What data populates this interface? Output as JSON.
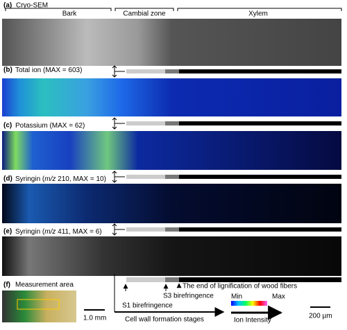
{
  "regions": {
    "bark": "Bark",
    "cambial": "Cambial zone",
    "xylem": "Xylem"
  },
  "panels": [
    {
      "letter": "(a)",
      "title": [
        "Cryo-SEM"
      ]
    },
    {
      "letter": "(b)",
      "title": [
        "Total ion (MAX = 603)"
      ]
    },
    {
      "letter": "(c)",
      "title": [
        "Potassium (MAX = 62)"
      ]
    },
    {
      "letter": "(d)",
      "title": [
        "Syringin (",
        "m/z",
        " 210, MAX = 10)"
      ]
    },
    {
      "letter": "(e)",
      "title": [
        "Syringin (",
        "m/z",
        " 411, MAX = 6)"
      ]
    }
  ],
  "measurement": {
    "letter": "(f)",
    "title": "Measurement area",
    "scale": "1.0 mm"
  },
  "stages": {
    "end": "The end of lignification of wood fibers",
    "s3": "S3 birefringence",
    "s1": "S1 birefringence",
    "axis": "Cell wall formation stages"
  },
  "colorbar": {
    "min": "Min",
    "max": "Max",
    "axis": "Ion Intensity"
  },
  "scale_bar": "200 µm"
}
